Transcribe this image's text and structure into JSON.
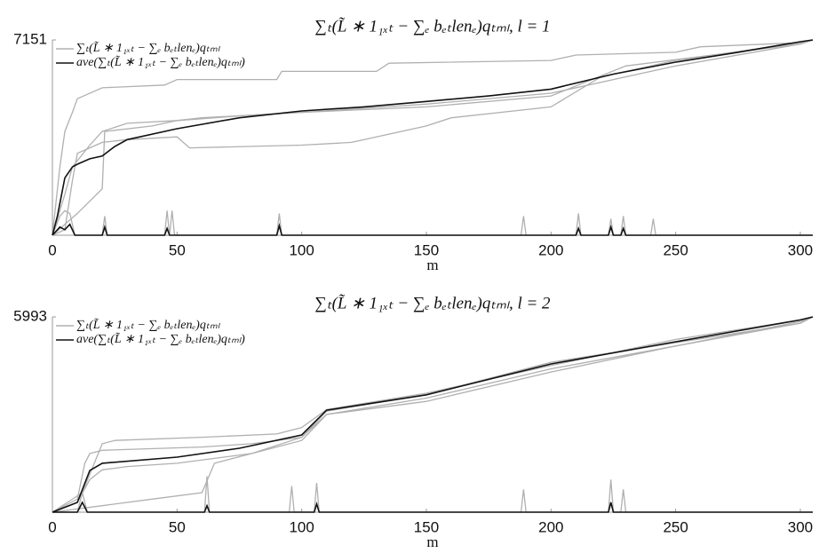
{
  "chart_data": [
    {
      "type": "line",
      "title": "∑ₜ(L̃ ∗ 1₁ₓₜ − ∑ₑ bₑₜlenₑ)qₜₘₗ, l = 1",
      "xlabel": "m",
      "xlim": [
        0,
        305
      ],
      "ylim": [
        0,
        7151
      ],
      "xticks": [
        0,
        50,
        100,
        150,
        200,
        250,
        300
      ],
      "yticks": [
        7151
      ],
      "legend": "upper left",
      "series": [
        {
          "name": "∑ₜ(L̃ ∗ 1₁ₓₜ − ∑ₑ bₑₜlenₑ)qₜₘₗ",
          "color": "#b0b0b0",
          "x": [
            0,
            3,
            5,
            8,
            10,
            20,
            45,
            50,
            90,
            92,
            130,
            135,
            200,
            210,
            250,
            260,
            300,
            305
          ],
          "values": [
            0,
            2500,
            3800,
            4500,
            5000,
            5400,
            5500,
            5700,
            5700,
            6000,
            6000,
            6300,
            6400,
            6600,
            6700,
            6900,
            7050,
            7151
          ]
        },
        {
          "name": "ave(∑ₜ(L̃ ∗ 1₁ₓₜ − ∑ₑ bₑₜlenₑ)qₜₘₗ)",
          "color": "#111111",
          "x": [
            0,
            2,
            5,
            8,
            10,
            15,
            20,
            25,
            30,
            50,
            75,
            100,
            125,
            150,
            175,
            200,
            225,
            250,
            275,
            300,
            305
          ],
          "values": [
            0,
            700,
            2100,
            2500,
            2600,
            2800,
            2900,
            3250,
            3500,
            3900,
            4300,
            4550,
            4700,
            4900,
            5100,
            5350,
            5900,
            6340,
            6700,
            7086,
            7151
          ]
        },
        {
          "color": "#b0b0b0",
          "x": [
            0,
            5,
            8,
            15,
            20,
            30,
            50,
            80,
            100,
            150,
            200,
            250,
            300,
            305
          ],
          "values": [
            0,
            1500,
            2500,
            3300,
            3800,
            4100,
            4200,
            4400,
            4500,
            4800,
            5200,
            6200,
            7000,
            7151
          ]
        },
        {
          "color": "#b0b0b0",
          "x": [
            0,
            10,
            20,
            21,
            40,
            50,
            60,
            100,
            150,
            200,
            230,
            300,
            305
          ],
          "values": [
            0,
            800,
            1700,
            3800,
            4000,
            4200,
            4300,
            4500,
            4700,
            5100,
            6200,
            7000,
            7151
          ]
        },
        {
          "color": "#b0b0b0",
          "x": [
            0,
            5,
            8,
            10,
            15,
            20,
            30,
            50,
            55,
            100,
            120,
            150,
            160,
            200,
            220,
            250,
            300,
            305
          ],
          "values": [
            0,
            200,
            2000,
            3000,
            3200,
            3400,
            3500,
            3600,
            3200,
            3300,
            3400,
            4000,
            4300,
            4700,
            5800,
            6400,
            7050,
            7151
          ]
        },
        {
          "color": "#b0b0b0",
          "x": [
            0,
            3,
            5,
            7,
            9,
            20,
            21,
            22,
            45,
            46,
            47,
            48,
            49,
            50,
            90,
            91,
            92,
            188,
            189,
            190,
            210,
            211,
            212,
            223,
            224,
            225,
            228,
            229,
            230,
            240,
            241,
            242,
            305
          ],
          "values": [
            0,
            700,
            900,
            800,
            0,
            0,
            700,
            0,
            0,
            900,
            0,
            900,
            0,
            0,
            0,
            800,
            0,
            0,
            700,
            0,
            0,
            800,
            0,
            0,
            600,
            0,
            0,
            700,
            0,
            0,
            600,
            0,
            0
          ]
        },
        {
          "color": "#111111",
          "x": [
            0,
            3,
            5,
            7,
            9,
            20,
            21,
            22,
            45,
            46,
            47,
            90,
            91,
            92,
            210,
            211,
            212,
            223,
            224,
            225,
            228,
            229,
            230,
            305
          ],
          "values": [
            0,
            300,
            200,
            400,
            0,
            0,
            300,
            0,
            0,
            250,
            0,
            0,
            350,
            0,
            0,
            250,
            0,
            0,
            300,
            0,
            0,
            250,
            0,
            0
          ]
        }
      ]
    },
    {
      "type": "line",
      "title": "∑ₜ(L̃ ∗ 1₁ₓₜ − ∑ₑ bₑₜlenₑ)qₜₘₗ, l = 2",
      "xlabel": "m",
      "xlim": [
        0,
        305
      ],
      "ylim": [
        0,
        5993
      ],
      "xticks": [
        0,
        50,
        100,
        150,
        200,
        250,
        300
      ],
      "yticks": [
        5993
      ],
      "legend": "upper left",
      "series": [
        {
          "name": "∑ₜ(L̃ ∗ 1₁ₓₜ − ∑ₑ bₑₜlenₑ)qₜₘₗ",
          "color": "#b0b0b0",
          "x": [
            0,
            10,
            13,
            15,
            20,
            60,
            80,
            100,
            110,
            150,
            200,
            250,
            300,
            305
          ],
          "values": [
            0,
            400,
            1500,
            1800,
            1900,
            2000,
            2100,
            2300,
            3100,
            3600,
            4600,
            5200,
            5800,
            5993
          ]
        },
        {
          "name": "ave(∑ₜ(L̃ ∗ 1₁ₓₜ − ∑ₑ bₑₜlenₑ)qₜₘₗ)",
          "color": "#111111",
          "x": [
            0,
            10,
            15,
            20,
            50,
            75,
            100,
            110,
            150,
            200,
            250,
            300,
            305
          ],
          "values": [
            0,
            300,
            1280,
            1500,
            1690,
            1960,
            2370,
            3130,
            3600,
            4550,
            5230,
            5900,
            5993
          ]
        },
        {
          "color": "#b0b0b0",
          "x": [
            0,
            12,
            20,
            25,
            60,
            90,
            100,
            110,
            150,
            200,
            250,
            300,
            305
          ],
          "values": [
            0,
            600,
            2100,
            2200,
            2300,
            2400,
            2600,
            3150,
            3650,
            4500,
            5300,
            5900,
            5993
          ]
        },
        {
          "color": "#b0b0b0",
          "x": [
            0,
            20,
            40,
            60,
            65,
            80,
            100,
            110,
            150,
            200,
            250,
            300,
            305
          ],
          "values": [
            0,
            200,
            400,
            600,
            1500,
            1800,
            2300,
            3000,
            3500,
            4400,
            5100,
            5850,
            5993
          ]
        },
        {
          "color": "#b0b0b0",
          "x": [
            0,
            10,
            15,
            20,
            30,
            50,
            80,
            100,
            110,
            150,
            200,
            250,
            300,
            305
          ],
          "values": [
            0,
            300,
            1000,
            1300,
            1400,
            1500,
            1800,
            2200,
            3000,
            3400,
            4300,
            5100,
            5800,
            5993
          ]
        },
        {
          "color": "#b0b0b0",
          "x": [
            0,
            10,
            12,
            14,
            61,
            62,
            63,
            95,
            96,
            97,
            105,
            106,
            107,
            188,
            189,
            190,
            223,
            224,
            225,
            228,
            229,
            230,
            305
          ],
          "values": [
            0,
            0,
            600,
            0,
            0,
            1100,
            0,
            0,
            800,
            0,
            0,
            900,
            0,
            0,
            700,
            0,
            0,
            1000,
            0,
            0,
            700,
            0,
            0
          ]
        },
        {
          "color": "#111111",
          "x": [
            0,
            10,
            12,
            14,
            61,
            62,
            63,
            105,
            106,
            107,
            223,
            224,
            225,
            305
          ],
          "values": [
            0,
            0,
            300,
            0,
            0,
            200,
            0,
            0,
            250,
            0,
            0,
            300,
            0,
            0
          ]
        }
      ]
    }
  ]
}
